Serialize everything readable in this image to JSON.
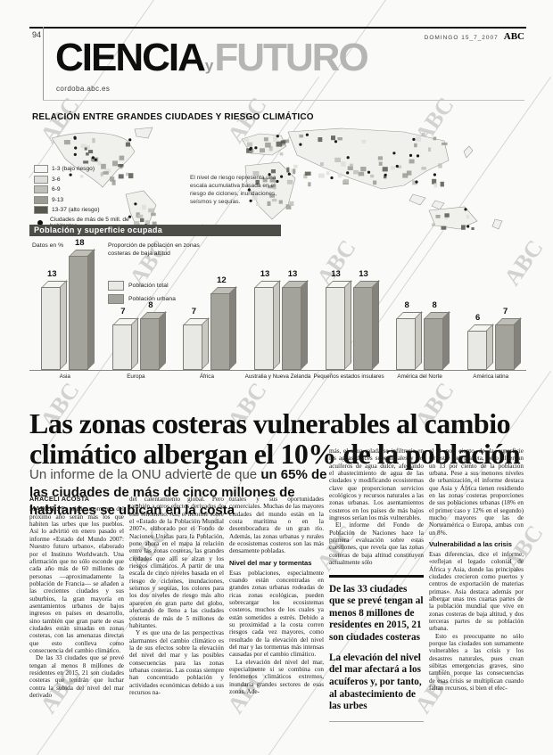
{
  "page": {
    "number": "94",
    "date": "DOMINGO 15_7_2007",
    "brand": "ABC",
    "watermark": "ABC"
  },
  "masthead": {
    "title_black": "CIENCIA",
    "title_connector": "y",
    "title_gray": "FUTURO",
    "site_url": "cordoba.abc.es"
  },
  "infographic": {
    "title": "RELACIÓN ENTRE GRANDES CIUDADES Y RIESGO CLIMÁTICO",
    "map_note": "El nivel de riesgo representa una escala acumulativa basada en el riesgo de ciclones, inundaciones, seísmos y sequías.",
    "risk_legend": [
      {
        "label": "1-3 (bajo riesgo)",
        "color": "#f5f5f2"
      },
      {
        "label": "3-6",
        "color": "#dededa"
      },
      {
        "label": "6-9",
        "color": "#c0c0ba"
      },
      {
        "label": "9-13",
        "color": "#9b9b93"
      },
      {
        "label": "13-37 (alto riesgo)",
        "color": "#58584f"
      }
    ],
    "cities_legend": "Ciudades de más de 5 mill. de habitantes"
  },
  "chart_data": {
    "type": "bar",
    "title": "Población y superficie ocupada",
    "units_note": "Datos en %",
    "annotation": "Proporción de población en zonas costeras de baja altitud",
    "categories": [
      "Asia",
      "Europa",
      "África",
      "Australia y Nueva Zelanda",
      "Pequeños estados insulares",
      "América del Norte",
      "América latina"
    ],
    "series": [
      {
        "name": "Población total",
        "color": "#e8e8e4",
        "values": [
          13,
          7,
          7,
          13,
          13,
          8,
          6
        ]
      },
      {
        "name": "Población urbana",
        "color": "#a3a39c",
        "values": [
          18,
          8,
          12,
          13,
          13,
          8,
          7
        ]
      }
    ],
    "ylim": [
      0,
      20
    ],
    "legend_position": "upper-left",
    "grid": false
  },
  "article": {
    "headline_pre": "Las ",
    "headline_bold": "zonas costeras vulnerables",
    "headline_post": " al cambio climático albergan el 10% de la población",
    "subhead_pre": "Un informe de la ONU advierte de que ",
    "subhead_bold": "un 65% de las ciudades de más de cinco millones de habitantes se ubican en la costa",
    "columns": [
      {
        "blocks": [
          {
            "type": "byline",
            "text": "ARACELI ACOSTA"
          },
          {
            "type": "p",
            "lead": "MADRID.",
            "text": " En algún momento del próximo año serán más los que habiten las urbes que los pueblos. Así lo advirtió en enero pasado el informe «Estado del Mundo 2007: Nuestro futuro urbano», elaborado por el Instituto Worldwatch. Una afirmación que no sólo esconde que cada año más de 60 millones de personas —aproximadamente la población de Francia— se añaden a las crecientes ciudades y sus suburbios, la gran mayoría en asentamientos urbanos de bajos ingresos en países en desarrollo, sino también que gran parte de esas ciudades están situadas en zonas costeras, con las amenazas directas que esto conlleva como consecuencia del cambio climático."
          },
          {
            "type": "p",
            "indent": true,
            "text": "De las 33 ciudades que se prevé tengan al menos 8 millones de residentes en 2015, 21 son ciudades costeras que tendrán que luchar contra la subida del nivel del mar derivado"
          }
        ]
      },
      {
        "blocks": [
          {
            "type": "p",
            "text": "del calentamiento global. Pero también a otros efectos derivados de este fenómeno. Así, el informe sobre el «Estado de la Población Mundial 2007», elaborado por el Fondo de Naciones Unidas para la Población, pone ahora en el mapa la relación entre las zonas costeras, las grandes ciudades que allí se alzan y los riesgos climáticos. A partir de una escala de cinco niveles basada en el riesgo de ciclones, inundaciones, seísmos y sequías, los colores para los dos niveles de riesgo más alto aparecen en gran parte del globo, afectando de lleno a las ciudades costeras de más de 5 millones de habitantes."
          },
          {
            "type": "p",
            "indent": true,
            "text": "Y es que una de las perspectivas alarmantes del cambio climático es la de sus efectos sobre la elevación del nivel del mar y las posibles consecuencias para las zonas urbanas costeras. Las costas siempre han concentrado población y actividades económicas debido a sus recursos na-"
          }
        ]
      },
      {
        "blocks": [
          {
            "type": "p",
            "text": "turales y sus oportunidades comerciales. Muchas de las mayores ciudades del mundo están en la costa marítima o en la desembocadura de un gran río. Además, las zonas urbanas y rurales de ecosistemas costeros son las más densamente pobladas."
          },
          {
            "type": "subhead",
            "text": "Nivel del mar y tormentas"
          },
          {
            "type": "p",
            "text": "Esas poblaciones, especialmente cuando están concentradas en grandes zonas urbanas rodeadas de ricas zonas ecológicas, pueden sobrecargar los ecosistemas costeros, muchos de los cuales ya están sometidos a estrés. Debido a su proximidad a la costa corren riesgos cada vez mayores, como resultado de la elevación del nivel del mar y las tormentas más intensas causadas por el cambio climático."
          },
          {
            "type": "p",
            "indent": true,
            "text": "La elevación del nivel del mar, especialmente si se combina con fenómenos climáticos extremos, inundaría grandes sectores de esas zonas. Ade-"
          }
        ]
      },
      {
        "blocks": [
          {
            "type": "p",
            "text": "más, el agua salada se infiltraría en las aguas dulces superficiales y los acuíferos de agua dulce, afectando el abastecimiento de agua de las ciudades y modificando ecosistemas clave que proporcionan servicios ecológicos y recursos naturales a las zonas urbanas. Los asentamientos costeros en los países de más bajos ingresos serían los más vulnerables."
          },
          {
            "type": "p",
            "indent": true,
            "text": "El informe del Fondo de Población de Naciones hace la primera evaluación sobre estas cuestiones, que revela que las zonas costeras de baja altitud constituyen actualmente sólo"
          },
          {
            "type": "rule-thick"
          },
          {
            "type": "quote",
            "text": "De las 33 ciudades que se prevé tengan al menos 8 millones de residentes en 2015, 21 son ciudades costeras"
          },
          {
            "type": "quote",
            "text": "La elevación del nivel del mar afectará a los acuíferos y, por tanto, al abastecimiento de las urbes"
          },
          {
            "type": "rule-thin"
          }
        ]
      },
      {
        "blocks": [
          {
            "type": "p",
            "text": "el 2 por ciento de la superficie terrestre del planeta, pero albergan un 13 por ciento de la población urbana. Pese a sus menores niveles de urbanización, el informe destaca que Asia y África tienen residiendo en las zonas costeras proporciones de sus poblaciones urbanas (18% en el primer caso y 12% en el segundo) mucho mayores que las de Norteamérica o Europa, ambas con un 8%."
          },
          {
            "type": "subhead",
            "text": "Vulnerabilidad a las crisis"
          },
          {
            "type": "p",
            "text": "Esas diferencias, dice el informe, «reflejan el legado colonial de África y Asia, donde las principales ciudades crecieron como puertos y centros de exportación de materias primas». Asia destaca además por albergar unas tres cuartas partes de la población mundial que vive en zonas costeras de baja altitud, y dos terceras partes de su población urbana."
          },
          {
            "type": "p",
            "indent": true,
            "text": "Esto es preocupante no sólo porque las ciudades son sumamente vulnerables a las crisis y los desastres naturales, pues crean súbitas emergencias graves, sino también porque las consecuencias de esas crisis se multiplican cuando faltan recursos, si bien el efec-"
          }
        ]
      }
    ]
  }
}
